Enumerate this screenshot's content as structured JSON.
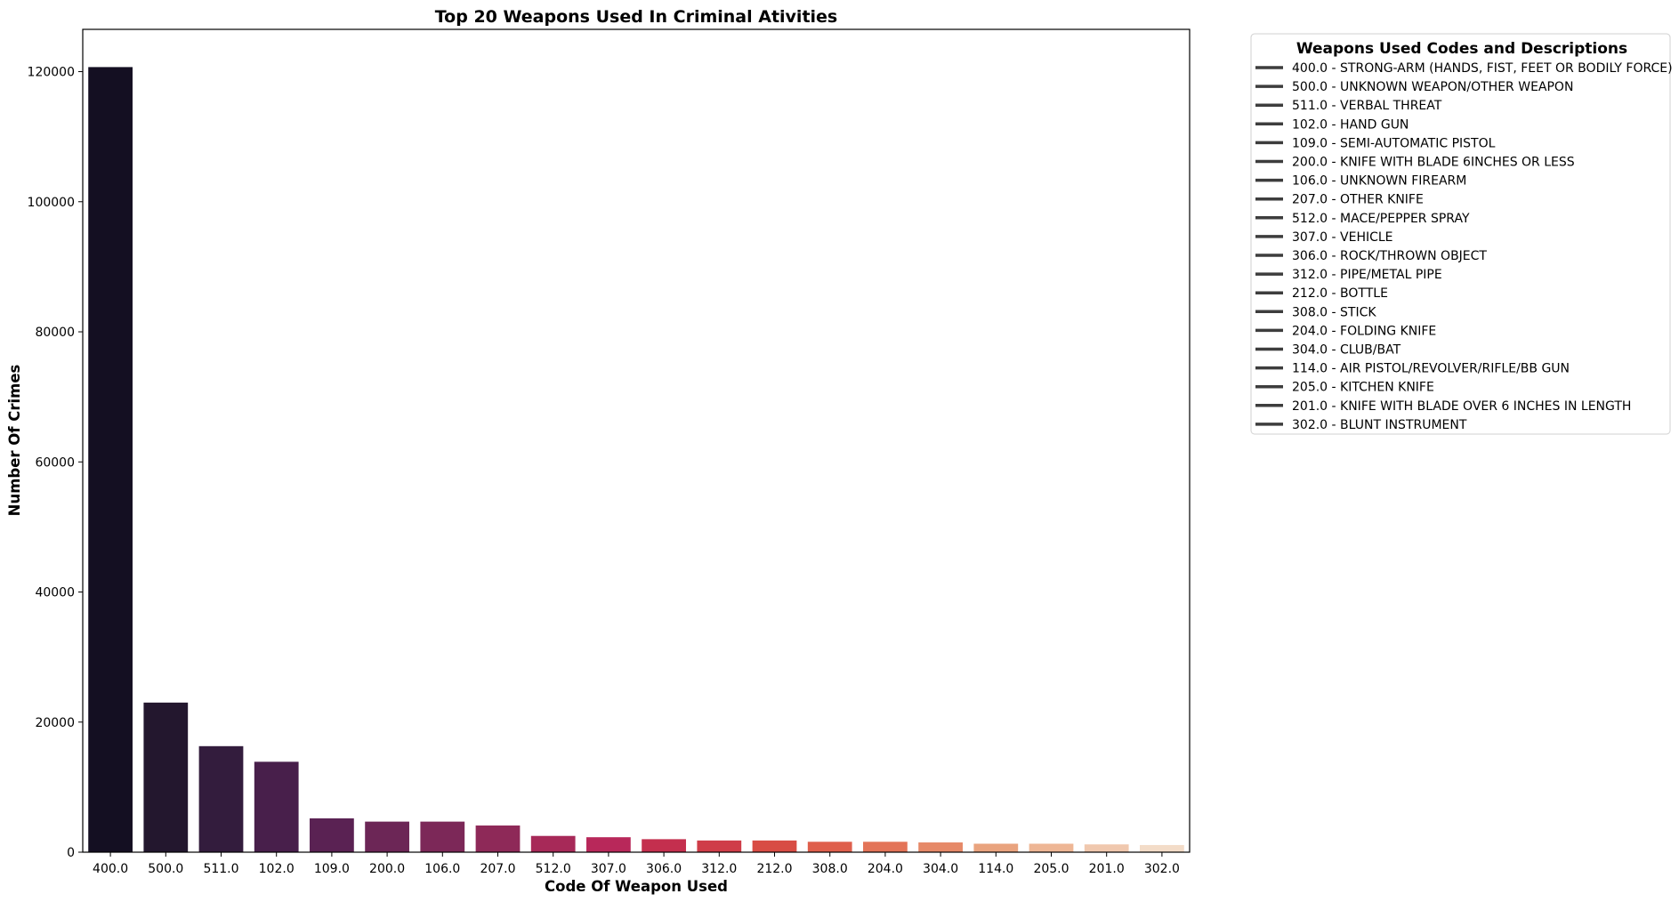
{
  "chart_data": {
    "type": "bar",
    "title": "Top 20 Weapons Used In Criminal Ativities",
    "xlabel": "Code Of Weapon Used",
    "ylabel": "Number Of Crimes",
    "ylim": [
      0,
      126500
    ],
    "yticks": [
      "0",
      "20000",
      "40000",
      "60000",
      "80000",
      "100000",
      "120000"
    ],
    "ytick_values": [
      0,
      20000,
      40000,
      60000,
      80000,
      100000,
      120000
    ],
    "categories": [
      "400.0",
      "500.0",
      "511.0",
      "102.0",
      "109.0",
      "200.0",
      "106.0",
      "207.0",
      "512.0",
      "307.0",
      "306.0",
      "312.0",
      "212.0",
      "308.0",
      "204.0",
      "304.0",
      "114.0",
      "205.0",
      "201.0",
      "302.0"
    ],
    "values": [
      120700,
      23000,
      16300,
      13900,
      5200,
      4700,
      4700,
      4100,
      2500,
      2300,
      2000,
      1800,
      1800,
      1600,
      1600,
      1500,
      1300,
      1300,
      1200,
      1100
    ],
    "colors": [
      "#140f22",
      "#23172e",
      "#331c3d",
      "#481f4b",
      "#5a2253",
      "#6c2656",
      "#7c2858",
      "#8e2958",
      "#a72958",
      "#b8285a",
      "#c42f4e",
      "#cf3d48",
      "#d84c44",
      "#df5f4c",
      "#e37458",
      "#e68968",
      "#e9a37e",
      "#eeb695",
      "#f0c8ae",
      "#f3dcc8"
    ],
    "grid": false,
    "legend": {
      "title": "Weapons Used Codes and Descriptions",
      "placement": "outside-right-top",
      "entries": [
        "400.0 - STRONG-ARM (HANDS, FIST, FEET OR BODILY FORCE)",
        "500.0 - UNKNOWN WEAPON/OTHER WEAPON",
        "511.0 - VERBAL THREAT",
        "102.0 - HAND GUN",
        "109.0 - SEMI-AUTOMATIC PISTOL",
        "200.0 - KNIFE WITH BLADE 6INCHES OR LESS",
        "106.0 - UNKNOWN FIREARM",
        "207.0 - OTHER KNIFE",
        "512.0 - MACE/PEPPER SPRAY",
        "307.0 - VEHICLE",
        "306.0 - ROCK/THROWN OBJECT",
        "312.0 - PIPE/METAL PIPE",
        "212.0 - BOTTLE",
        "308.0 - STICK",
        "204.0 - FOLDING KNIFE",
        "304.0 - CLUB/BAT",
        "114.0 - AIR PISTOL/REVOLVER/RIFLE/BB GUN",
        "205.0 - KITCHEN KNIFE",
        "201.0 - KNIFE WITH BLADE OVER 6 INCHES IN LENGTH",
        "302.0 - BLUNT INSTRUMENT"
      ],
      "line_color": "#3d3d3d"
    }
  }
}
